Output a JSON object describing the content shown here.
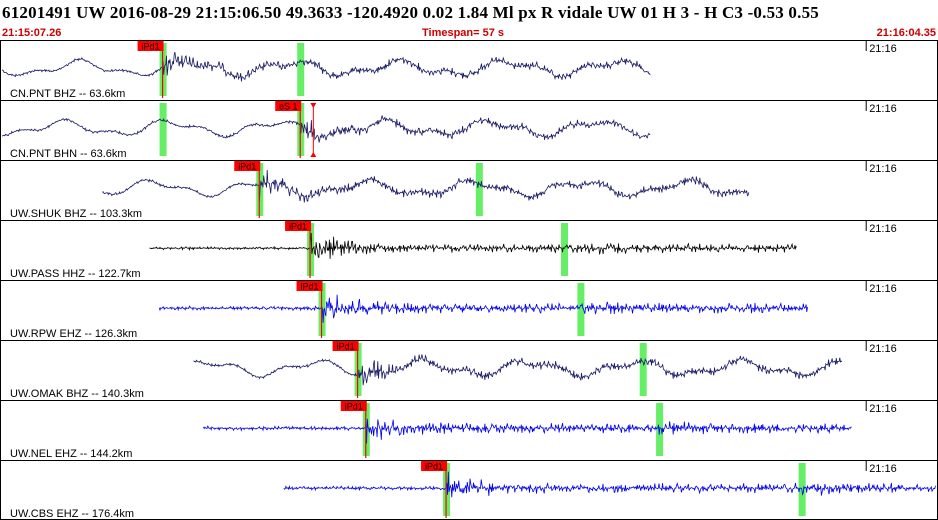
{
  "header": {
    "title": "61201491 UW 2016-08-29 21:15:06.50   49.3633 -120.4920   0.02  1.84 Ml  px  R vidale   UW 01  H   3  -  H C3   -0.53  0.55",
    "start_time": "21:15:07.26",
    "timespan": "Timespan=  57 s",
    "end_time": "21:16:04.35"
  },
  "colors": {
    "dark_trace": "#1a1a66",
    "black_trace": "#000000",
    "blue_trace": "#0000ee",
    "pick_red": "#ff0000",
    "window_green": "#66ee66",
    "label_red": "#cc0000"
  },
  "chart_data": {
    "type": "line",
    "title": "",
    "time_range_s": [
      0,
      57
    ],
    "minute_label": "21:16",
    "minute_tick_s": 52.74,
    "traces": [
      {
        "label": "CN.PNT BHZ -- 63.6km",
        "color": "dark",
        "start_s": 0.0,
        "end_s": 39.6,
        "pick_label": "iPd1",
        "pick_s": 9.8,
        "windows_s": [
          9.8,
          18.2
        ],
        "extra_picks_s": []
      },
      {
        "label": "CN.PNT BHN -- 63.6km",
        "color": "dark",
        "start_s": 0.0,
        "end_s": 39.6,
        "pick_label": "eS 1",
        "pick_s": 18.2,
        "windows_s": [
          9.8,
          18.2
        ],
        "extra_picks_s": [
          19.0
        ]
      },
      {
        "label": "UW.SHUK BHZ -- 103.3km",
        "color": "dark",
        "start_s": 6.1,
        "end_s": 45.6,
        "pick_label": "iPd1",
        "pick_s": 15.7,
        "windows_s": [
          15.7,
          29.1
        ],
        "extra_picks_s": []
      },
      {
        "label": "UW.PASS HHZ -- 122.7km",
        "color": "black",
        "start_s": 9.0,
        "end_s": 48.5,
        "pick_label": "iPd1",
        "pick_s": 18.8,
        "windows_s": [
          18.8,
          34.3
        ],
        "extra_picks_s": []
      },
      {
        "label": "UW.RPW EHZ -- 126.3km",
        "color": "blue",
        "start_s": 9.6,
        "end_s": 49.2,
        "pick_label": "iPd1",
        "pick_s": 19.5,
        "windows_s": [
          19.5,
          35.3
        ],
        "extra_picks_s": []
      },
      {
        "label": "UW.OMAK BHZ -- 140.3km",
        "color": "dark",
        "start_s": 11.7,
        "end_s": 51.3,
        "pick_label": "iPd1",
        "pick_s": 21.7,
        "windows_s": [
          21.7,
          39.1
        ],
        "extra_picks_s": []
      },
      {
        "label": "UW.NEL EHZ -- 144.2km",
        "color": "blue",
        "start_s": 12.3,
        "end_s": 51.9,
        "pick_label": "iPd1",
        "pick_s": 22.2,
        "windows_s": [
          22.2,
          40.1
        ],
        "extra_picks_s": []
      },
      {
        "label": "UW.CBS EHZ -- 176.4km",
        "color": "blue",
        "start_s": 17.2,
        "end_s": 57.0,
        "pick_label": "iPd1",
        "pick_s": 27.1,
        "windows_s": [
          27.1,
          48.8
        ],
        "extra_picks_s": []
      }
    ]
  }
}
